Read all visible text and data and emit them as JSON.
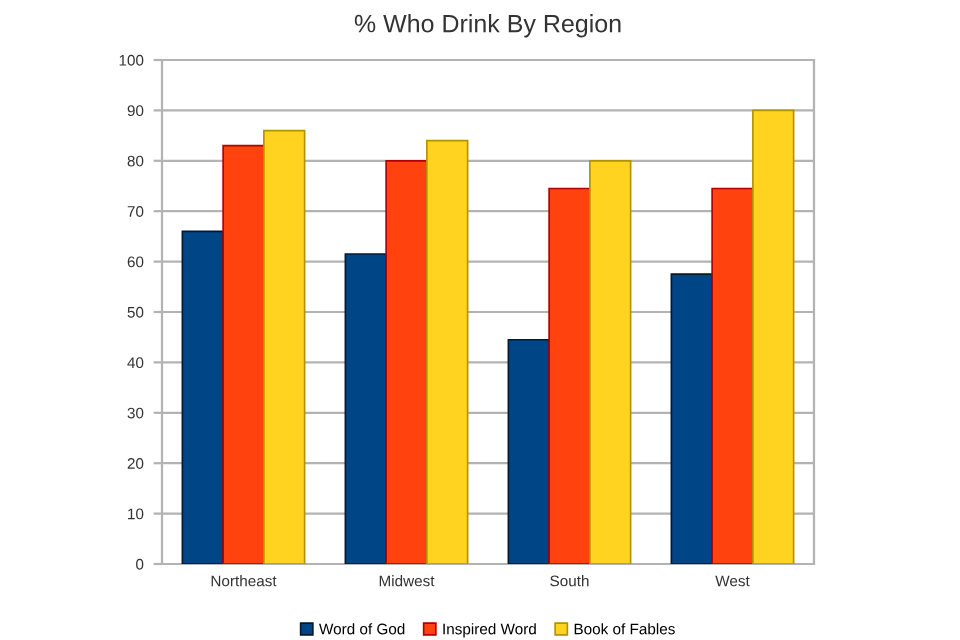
{
  "chart_data": {
    "type": "bar",
    "title": "% Who Drink By Region",
    "categories": [
      "Northeast",
      "Midwest",
      "South",
      "West"
    ],
    "series": [
      {
        "name": "Word of God",
        "color": "#004586",
        "values": [
          66,
          61.5,
          44.5,
          57.5
        ]
      },
      {
        "name": "Inspired Word",
        "color": "#ff420e",
        "values": [
          83,
          80,
          74.5,
          74.5
        ]
      },
      {
        "name": "Book of Fables",
        "color": "#ffd320",
        "values": [
          86,
          84,
          80,
          90
        ]
      }
    ],
    "ylim": [
      0,
      100
    ],
    "yticks": [
      0,
      10,
      20,
      30,
      40,
      50,
      60,
      70,
      80,
      90,
      100
    ],
    "grid": "y",
    "legend": "bottom"
  }
}
